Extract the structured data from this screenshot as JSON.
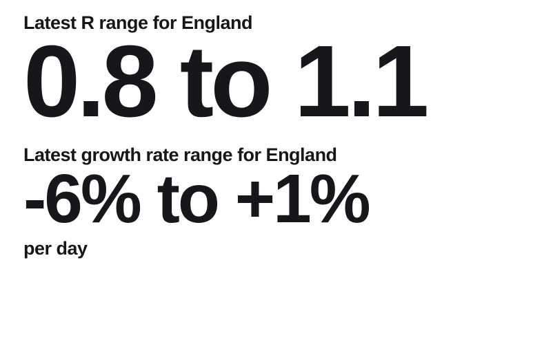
{
  "r_range": {
    "label": "Latest R range for England",
    "value": "0.8 to 1.1",
    "label_fontsize": 27,
    "value_fontsize": 148,
    "font_weight": 900,
    "text_color": "#18161a"
  },
  "growth_rate": {
    "label": "Latest growth rate range for England",
    "value": "-6% to +1%",
    "suffix": "per day",
    "label_fontsize": 27,
    "value_fontsize": 100,
    "suffix_fontsize": 27,
    "font_weight": 900,
    "text_color": "#18161a"
  },
  "background_color": "#ffffff"
}
